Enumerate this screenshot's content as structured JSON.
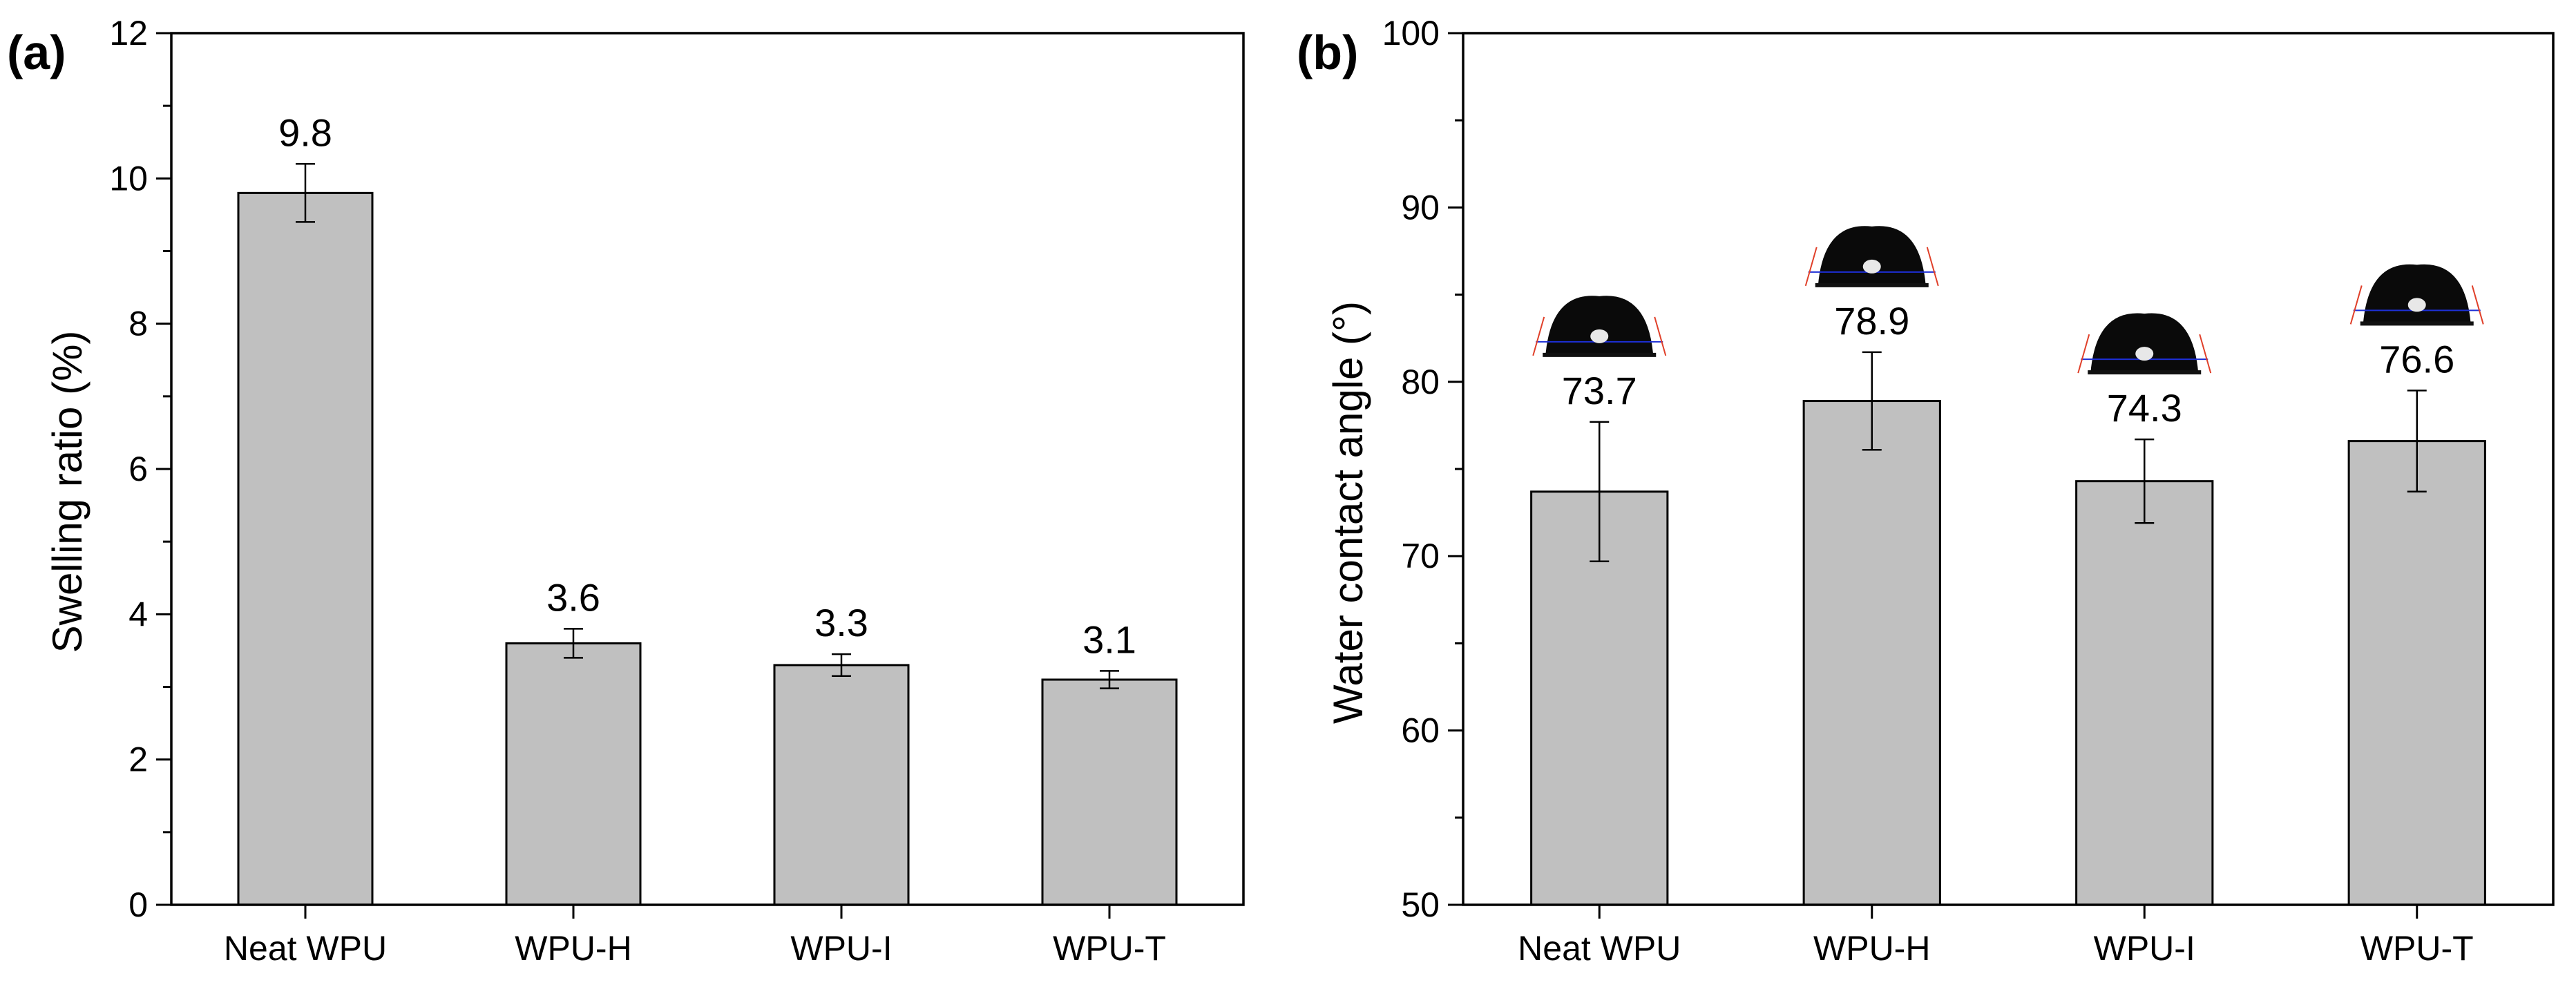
{
  "chart_data": [
    {
      "panel_label": "(a)",
      "type": "bar",
      "categories": [
        "Neat WPU",
        "WPU-H",
        "WPU-I",
        "WPU-T"
      ],
      "values": [
        9.8,
        3.6,
        3.3,
        3.1
      ],
      "errors": [
        0.4,
        0.2,
        0.15,
        0.12
      ],
      "data_labels": [
        "9.8",
        "3.6",
        "3.3",
        "3.1"
      ],
      "title": "",
      "xlabel": "",
      "ylabel": "Swelling ratio (%)",
      "ylim": [
        0,
        12
      ],
      "yticks": [
        0,
        2,
        4,
        6,
        8,
        10,
        12
      ],
      "ytick_labels": [
        "0",
        "2",
        "4",
        "6",
        "8",
        "10",
        "12"
      ],
      "bar_color": "#c0c0c0",
      "insets": false
    },
    {
      "panel_label": "(b)",
      "type": "bar",
      "categories": [
        "Neat WPU",
        "WPU-H",
        "WPU-I",
        "WPU-T"
      ],
      "values": [
        73.7,
        78.9,
        74.3,
        76.6
      ],
      "errors": [
        4.0,
        2.8,
        2.4,
        2.9
      ],
      "data_labels": [
        "73.7",
        "78.9",
        "74.3",
        "76.6"
      ],
      "title": "",
      "xlabel": "",
      "ylabel": "Water contact angle (°)",
      "ylim": [
        50,
        100
      ],
      "yticks": [
        50,
        60,
        70,
        80,
        90,
        100
      ],
      "ytick_labels": [
        "50",
        "60",
        "70",
        "80",
        "90",
        "100"
      ],
      "bar_color": "#c0c0c0",
      "insets": true
    }
  ]
}
